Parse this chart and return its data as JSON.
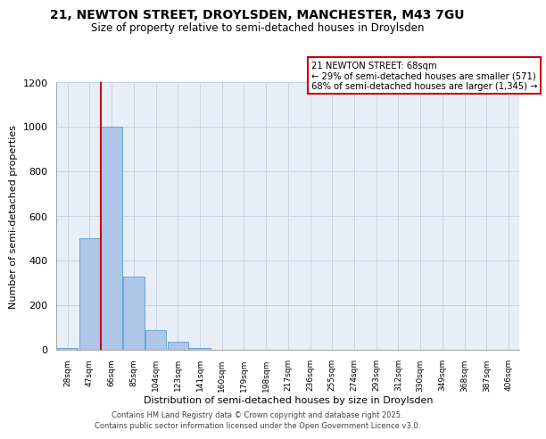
{
  "title_line1": "21, NEWTON STREET, DROYLSDEN, MANCHESTER, M43 7GU",
  "title_line2": "Size of property relative to semi-detached houses in Droylsden",
  "xlabel": "Distribution of semi-detached houses by size in Droylsden",
  "ylabel": "Number of semi-detached properties",
  "categories": [
    "28sqm",
    "47sqm",
    "66sqm",
    "85sqm",
    "104sqm",
    "123sqm",
    "141sqm",
    "160sqm",
    "179sqm",
    "198sqm",
    "217sqm",
    "236sqm",
    "255sqm",
    "274sqm",
    "293sqm",
    "312sqm",
    "330sqm",
    "349sqm",
    "368sqm",
    "387sqm",
    "406sqm"
  ],
  "values": [
    10,
    500,
    1000,
    330,
    90,
    35,
    10,
    0,
    0,
    0,
    0,
    0,
    0,
    0,
    0,
    0,
    0,
    0,
    0,
    0,
    0
  ],
  "bar_color": "#aec6e8",
  "bar_edge_color": "#5b9bd5",
  "annotation_title": "21 NEWTON STREET: 68sqm",
  "annotation_line1": "← 29% of semi-detached houses are smaller (571)",
  "annotation_line2": "68% of semi-detached houses are larger (1,345) →",
  "annotation_box_color": "#cc0000",
  "vline_color": "#cc0000",
  "vline_x": 1.5,
  "ylim": [
    0,
    1200
  ],
  "yticks": [
    0,
    200,
    400,
    600,
    800,
    1000,
    1200
  ],
  "grid_color": "#c8d4e4",
  "background_color": "#e8eef8",
  "footer_line1": "Contains HM Land Registry data © Crown copyright and database right 2025.",
  "footer_line2": "Contains public sector information licensed under the Open Government Licence v3.0."
}
